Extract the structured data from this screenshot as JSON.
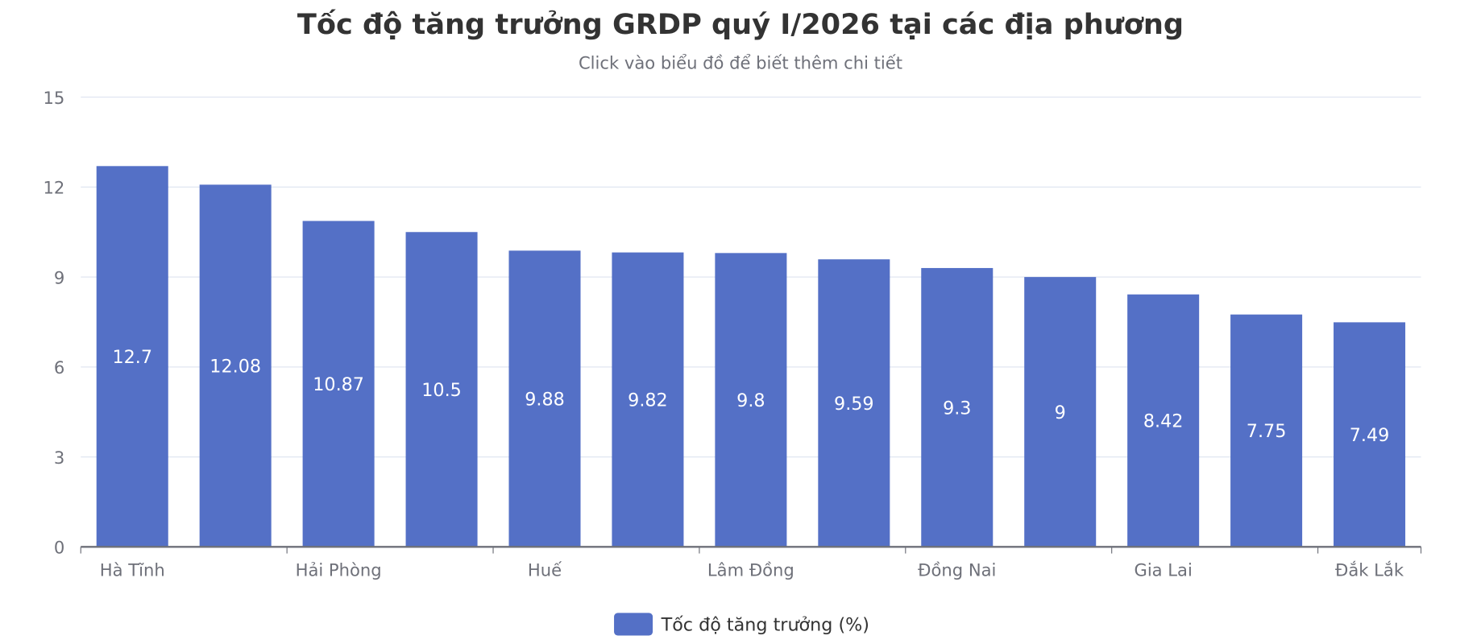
{
  "chart_data": {
    "type": "bar",
    "title": "Tốc độ tăng trưởng GRDP quý I/2026 tại các địa phương",
    "subtitle": "Click vào biểu đồ để biết thêm chi tiết",
    "categories": [
      "Hà Tĩnh",
      "",
      "Hải Phòng",
      "",
      "Huế",
      "",
      "Lâm Đồng",
      "",
      "Đồng Nai",
      "",
      "Gia Lai",
      "",
      "Đắk Lắk"
    ],
    "series": [
      {
        "name": "Tốc độ tăng trưởng (%)",
        "values": [
          12.7,
          12.08,
          10.87,
          10.5,
          9.88,
          9.82,
          9.8,
          9.59,
          9.3,
          9,
          8.42,
          7.75,
          7.49
        ]
      }
    ],
    "ylim": [
      0,
      15
    ],
    "yticks": [
      0,
      3,
      6,
      9,
      12,
      15
    ],
    "grid": true,
    "legend_position": "bottom",
    "colors": {
      "bar": "#5470c6",
      "grid": "#e0e6f1",
      "axis": "#6e7079"
    }
  }
}
